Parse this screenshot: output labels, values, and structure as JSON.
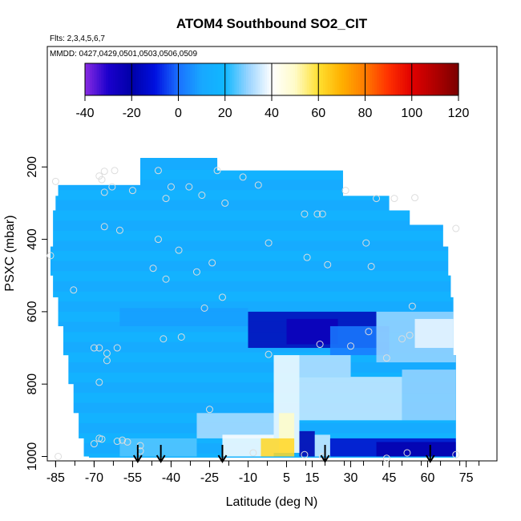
{
  "chart_data": {
    "type": "heatmap",
    "title": "ATOM4 Southbound SO2_CIT",
    "subtitle_flights": "Flts: 2,3,4,5,6,7",
    "subtitle_dates": "MMDD: 0427,0429,0501,0503,0506,0509",
    "xlabel": "Latitude (deg N)",
    "ylabel": "PSXC (mbar)",
    "xlim": [
      -87,
      87
    ],
    "ylim": [
      1010,
      0
    ],
    "x_ticks": [
      -85,
      -70,
      -55,
      -40,
      -25,
      -10,
      5,
      15,
      30,
      45,
      60,
      75
    ],
    "x_tick_labels": [
      "-85",
      "-70",
      "-55",
      "-40",
      "-25",
      "-10",
      "5",
      "15",
      "30",
      "45",
      "60",
      "75"
    ],
    "y_ticks": [
      200,
      400,
      600,
      800,
      1000
    ],
    "y_tick_labels": [
      "200",
      "400",
      "600",
      "800",
      "1000"
    ],
    "colorbar": {
      "min": -40,
      "max": 120,
      "ticks": [
        -40,
        -20,
        0,
        20,
        40,
        60,
        80,
        100,
        120
      ],
      "tick_labels": [
        "-40",
        "-20",
        "0",
        "20",
        "40",
        "60",
        "80",
        "100",
        "120"
      ],
      "stops": [
        {
          "v": -40,
          "c": "#8a2be2"
        },
        {
          "v": -30,
          "c": "#1a00cc"
        },
        {
          "v": -20,
          "c": "#0000a8"
        },
        {
          "v": -10,
          "c": "#0010e0"
        },
        {
          "v": 0,
          "c": "#1a70ff"
        },
        {
          "v": 10,
          "c": "#18a8ff"
        },
        {
          "v": 20,
          "c": "#10b8ff"
        },
        {
          "v": 30,
          "c": "#9ad4ff"
        },
        {
          "v": 40,
          "c": "#ffffff"
        },
        {
          "v": 50,
          "c": "#fffbc8"
        },
        {
          "v": 60,
          "c": "#ffe030"
        },
        {
          "v": 70,
          "c": "#ffb000"
        },
        {
          "v": 80,
          "c": "#ff7a00"
        },
        {
          "v": 90,
          "c": "#ff3000"
        },
        {
          "v": 100,
          "c": "#e00000"
        },
        {
          "v": 110,
          "c": "#b00000"
        },
        {
          "v": 120,
          "c": "#7a0000"
        }
      ]
    },
    "curtain_extent": [
      {
        "p": 175,
        "x0": -52,
        "x1": -22
      },
      {
        "p": 210,
        "x0": -52,
        "x1": 27
      },
      {
        "p": 250,
        "x0": -84,
        "x1": 27
      },
      {
        "p": 280,
        "x0": -85,
        "x1": 45
      },
      {
        "p": 320,
        "x0": -86,
        "x1": 53
      },
      {
        "p": 360,
        "x0": -86,
        "x1": 66
      },
      {
        "p": 420,
        "x0": -87,
        "x1": 68
      },
      {
        "p": 500,
        "x0": -86,
        "x1": 69
      },
      {
        "p": 560,
        "x0": -84,
        "x1": 70
      },
      {
        "p": 640,
        "x0": -82,
        "x1": 70
      },
      {
        "p": 720,
        "x0": -80,
        "x1": 71
      },
      {
        "p": 800,
        "x0": -78,
        "x1": 71
      },
      {
        "p": 880,
        "x0": -76,
        "x1": 71
      },
      {
        "p": 950,
        "x0": -74,
        "x1": 71
      },
      {
        "p": 1000,
        "x0": -72,
        "x1": 71
      }
    ],
    "field_background": 14,
    "field_features": [
      {
        "x0": -10,
        "x1": 40,
        "p0": 600,
        "p1": 700,
        "v": -17
      },
      {
        "x0": 5,
        "x1": 25,
        "p0": 620,
        "p1": 690,
        "v": -25
      },
      {
        "x0": 22,
        "x1": 45,
        "p0": 640,
        "p1": 720,
        "v": 2
      },
      {
        "x0": 40,
        "x1": 71,
        "p0": 600,
        "p1": 740,
        "v": 30
      },
      {
        "x0": 55,
        "x1": 71,
        "p0": 620,
        "p1": 700,
        "v": 38
      },
      {
        "x0": -60,
        "x1": -10,
        "p0": 590,
        "p1": 640,
        "v": 8
      },
      {
        "x0": 0,
        "x1": 10,
        "p0": 720,
        "p1": 990,
        "v": 40
      },
      {
        "x0": 2,
        "x1": 8,
        "p0": 880,
        "p1": 990,
        "v": 50
      },
      {
        "x0": 10,
        "x1": 30,
        "p0": 720,
        "p1": 780,
        "v": 33
      },
      {
        "x0": 10,
        "x1": 50,
        "p0": 780,
        "p1": 900,
        "v": 35
      },
      {
        "x0": 50,
        "x1": 71,
        "p0": 760,
        "p1": 900,
        "v": 30
      },
      {
        "x0": -30,
        "x1": 0,
        "p0": 880,
        "p1": 950,
        "v": 32
      },
      {
        "x0": -20,
        "x1": 0,
        "p0": 940,
        "p1": 1000,
        "v": 40
      },
      {
        "x0": -5,
        "x1": 8,
        "p0": 950,
        "p1": 1000,
        "v": 62
      },
      {
        "x0": 10,
        "x1": 16,
        "p0": 930,
        "p1": 1000,
        "v": -22
      },
      {
        "x0": 16,
        "x1": 22,
        "p0": 940,
        "p1": 1000,
        "v": 35
      },
      {
        "x0": 22,
        "x1": 71,
        "p0": 950,
        "p1": 1000,
        "v": -14
      },
      {
        "x0": 40,
        "x1": 71,
        "p0": 960,
        "p1": 1000,
        "v": -22
      },
      {
        "x0": -60,
        "x1": -30,
        "p0": 950,
        "p1": 1000,
        "v": 25
      }
    ],
    "sample_points": [
      {
        "x": -66,
        "p": 212
      },
      {
        "x": -68,
        "p": 225
      },
      {
        "x": -67,
        "p": 235
      },
      {
        "x": -62,
        "p": 210
      },
      {
        "x": -45,
        "p": 210
      },
      {
        "x": -22,
        "p": 210
      },
      {
        "x": -85,
        "p": 240
      },
      {
        "x": -63,
        "p": 255
      },
      {
        "x": -55,
        "p": 265
      },
      {
        "x": -40,
        "p": 255
      },
      {
        "x": -33,
        "p": 255
      },
      {
        "x": -12,
        "p": 228
      },
      {
        "x": -6,
        "p": 250
      },
      {
        "x": 28,
        "p": 265
      },
      {
        "x": -66,
        "p": 270
      },
      {
        "x": -42,
        "p": 287
      },
      {
        "x": -28,
        "p": 278
      },
      {
        "x": -19,
        "p": 300
      },
      {
        "x": 12,
        "p": 330
      },
      {
        "x": 17,
        "p": 330
      },
      {
        "x": 19,
        "p": 330
      },
      {
        "x": 40,
        "p": 287
      },
      {
        "x": 47,
        "p": 287
      },
      {
        "x": 55,
        "p": 285
      },
      {
        "x": -66,
        "p": 365
      },
      {
        "x": -60,
        "p": 375
      },
      {
        "x": -2,
        "p": 410
      },
      {
        "x": 36,
        "p": 410
      },
      {
        "x": -45,
        "p": 400
      },
      {
        "x": -37,
        "p": 430
      },
      {
        "x": 71,
        "p": 370
      },
      {
        "x": -87,
        "p": 445
      },
      {
        "x": -47,
        "p": 480
      },
      {
        "x": -30,
        "p": 490
      },
      {
        "x": -42,
        "p": 510
      },
      {
        "x": -24,
        "p": 465
      },
      {
        "x": 13,
        "p": 450
      },
      {
        "x": 21,
        "p": 470
      },
      {
        "x": 38,
        "p": 475
      },
      {
        "x": -78,
        "p": 540
      },
      {
        "x": -20,
        "p": 560
      },
      {
        "x": -27,
        "p": 590
      },
      {
        "x": 54,
        "p": 585
      },
      {
        "x": -43,
        "p": 675
      },
      {
        "x": -36,
        "p": 670
      },
      {
        "x": 18,
        "p": 690
      },
      {
        "x": 30,
        "p": 695
      },
      {
        "x": 37,
        "p": 655
      },
      {
        "x": 50,
        "p": 675
      },
      {
        "x": 53,
        "p": 665
      },
      {
        "x": -70,
        "p": 700
      },
      {
        "x": -68,
        "p": 700
      },
      {
        "x": -65,
        "p": 715
      },
      {
        "x": -61,
        "p": 700
      },
      {
        "x": -65,
        "p": 735
      },
      {
        "x": -2,
        "p": 718
      },
      {
        "x": 44,
        "p": 728
      },
      {
        "x": -68,
        "p": 795
      },
      {
        "x": -25,
        "p": 870
      },
      {
        "x": -70,
        "p": 965
      },
      {
        "x": -68,
        "p": 950
      },
      {
        "x": -67,
        "p": 952
      },
      {
        "x": -61,
        "p": 958
      },
      {
        "x": -59,
        "p": 955
      },
      {
        "x": -57,
        "p": 960
      },
      {
        "x": -52,
        "p": 970
      },
      {
        "x": -8,
        "p": 990
      },
      {
        "x": 12,
        "p": 995
      },
      {
        "x": 19,
        "p": 1000
      },
      {
        "x": 44,
        "p": 1005
      },
      {
        "x": 52,
        "p": 990
      },
      {
        "x": 71,
        "p": 995
      },
      {
        "x": -84,
        "p": 1000
      },
      {
        "x": -52,
        "p": 985
      }
    ],
    "arrow_markers": [
      -53,
      -44,
      -20,
      20,
      61
    ],
    "arrow_color": "#000000",
    "point_color": "#dddddd",
    "grid": false,
    "legend_position": "top"
  }
}
